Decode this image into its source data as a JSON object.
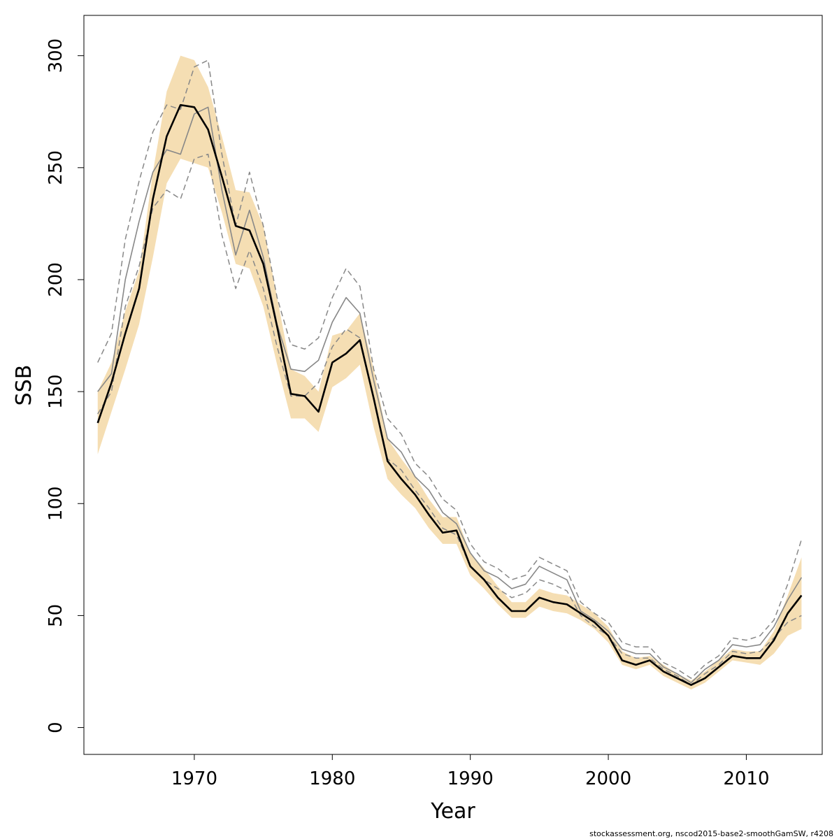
{
  "chart_data": {
    "type": "line",
    "title": "",
    "xlabel": "Year",
    "ylabel": "SSB",
    "xlim": [
      1962,
      2015.5
    ],
    "ylim": [
      -12,
      318
    ],
    "xticks": [
      1970,
      1980,
      1990,
      2000,
      2010
    ],
    "yticks": [
      0,
      50,
      100,
      150,
      200,
      250,
      300
    ],
    "grid": false,
    "legend": "none",
    "x": [
      1963,
      1964,
      1965,
      1966,
      1967,
      1968,
      1969,
      1970,
      1971,
      1972,
      1973,
      1974,
      1975,
      1976,
      1977,
      1978,
      1979,
      1980,
      1981,
      1982,
      1983,
      1984,
      1985,
      1986,
      1987,
      1988,
      1989,
      1990,
      1991,
      1992,
      1993,
      1994,
      1995,
      1996,
      1997,
      1998,
      1999,
      2000,
      2001,
      2002,
      2003,
      2004,
      2005,
      2006,
      2007,
      2008,
      2009,
      2010,
      2011,
      2012,
      2013,
      2014
    ],
    "series": [
      {
        "role": "estimate",
        "color": "#000000",
        "values": [
          136,
          154,
          176,
          196,
          236,
          264,
          278,
          277,
          267,
          246,
          224,
          222,
          207,
          179,
          149,
          148,
          141,
          163,
          167,
          173,
          147,
          119,
          111,
          104,
          95,
          87,
          88,
          72,
          66,
          58,
          52,
          52,
          58,
          56,
          55,
          51,
          47,
          41,
          30,
          28,
          30,
          25,
          22,
          19,
          22,
          27,
          32,
          31,
          31,
          39,
          51,
          59
        ]
      },
      {
        "role": "ci_lower",
        "color": "#f5deb3",
        "values": [
          122,
          141,
          160,
          180,
          210,
          243,
          254,
          252,
          250,
          230,
          207,
          205,
          188,
          162,
          138,
          138,
          132,
          152,
          156,
          162,
          134,
          111,
          104,
          98,
          89,
          82,
          82,
          68,
          62,
          55,
          49,
          49,
          54,
          52,
          51,
          48,
          44,
          38,
          28,
          26,
          28,
          23,
          20,
          17,
          20,
          25,
          30,
          29,
          28,
          33,
          41,
          44
        ]
      },
      {
        "role": "ci_upper",
        "color": "#f5deb3",
        "values": [
          150,
          163,
          186,
          204,
          248,
          284,
          300,
          298,
          286,
          264,
          240,
          239,
          224,
          192,
          160,
          157,
          150,
          175,
          177,
          185,
          160,
          129,
          120,
          112,
          102,
          94,
          94,
          78,
          71,
          63,
          56,
          56,
          62,
          60,
          59,
          55,
          51,
          45,
          34,
          31,
          32,
          28,
          24,
          21,
          25,
          30,
          35,
          34,
          34,
          43,
          59,
          76
        ]
      },
      {
        "role": "alternative",
        "color": "#888888",
        "values": [
          150,
          158,
          200,
          226,
          248,
          258,
          256,
          274,
          277,
          240,
          211,
          231,
          210,
          180,
          160,
          159,
          164,
          181,
          192,
          185,
          155,
          129,
          123,
          112,
          106,
          96,
          91,
          78,
          70,
          67,
          62,
          64,
          72,
          69,
          66,
          52,
          48,
          43,
          35,
          33,
          33,
          27,
          24,
          20,
          26,
          30,
          37,
          36,
          37,
          45,
          57,
          67
        ]
      },
      {
        "role": "alternative_lower",
        "color": "#888888",
        "values": [
          140,
          150,
          188,
          206,
          232,
          240,
          236,
          254,
          256,
          220,
          196,
          213,
          196,
          170,
          148,
          148,
          154,
          170,
          178,
          174,
          147,
          120,
          115,
          106,
          98,
          89,
          86,
          72,
          66,
          62,
          58,
          60,
          66,
          64,
          61,
          50,
          45,
          41,
          33,
          31,
          31,
          26,
          23,
          19,
          24,
          28,
          34,
          33,
          34,
          40,
          47,
          50
        ]
      },
      {
        "role": "alternative_upper",
        "color": "#888888",
        "values": [
          163,
          176,
          218,
          244,
          266,
          278,
          276,
          295,
          298,
          256,
          224,
          248,
          224,
          192,
          171,
          169,
          174,
          192,
          205,
          197,
          160,
          138,
          131,
          118,
          112,
          102,
          97,
          82,
          74,
          71,
          66,
          68,
          76,
          73,
          70,
          56,
          51,
          47,
          38,
          36,
          36,
          29,
          26,
          22,
          28,
          32,
          40,
          39,
          41,
          48,
          64,
          84
        ]
      }
    ]
  },
  "footer": {
    "note": "stockassessment.org, nscod2015-base2-smoothGamSW, r4208"
  }
}
